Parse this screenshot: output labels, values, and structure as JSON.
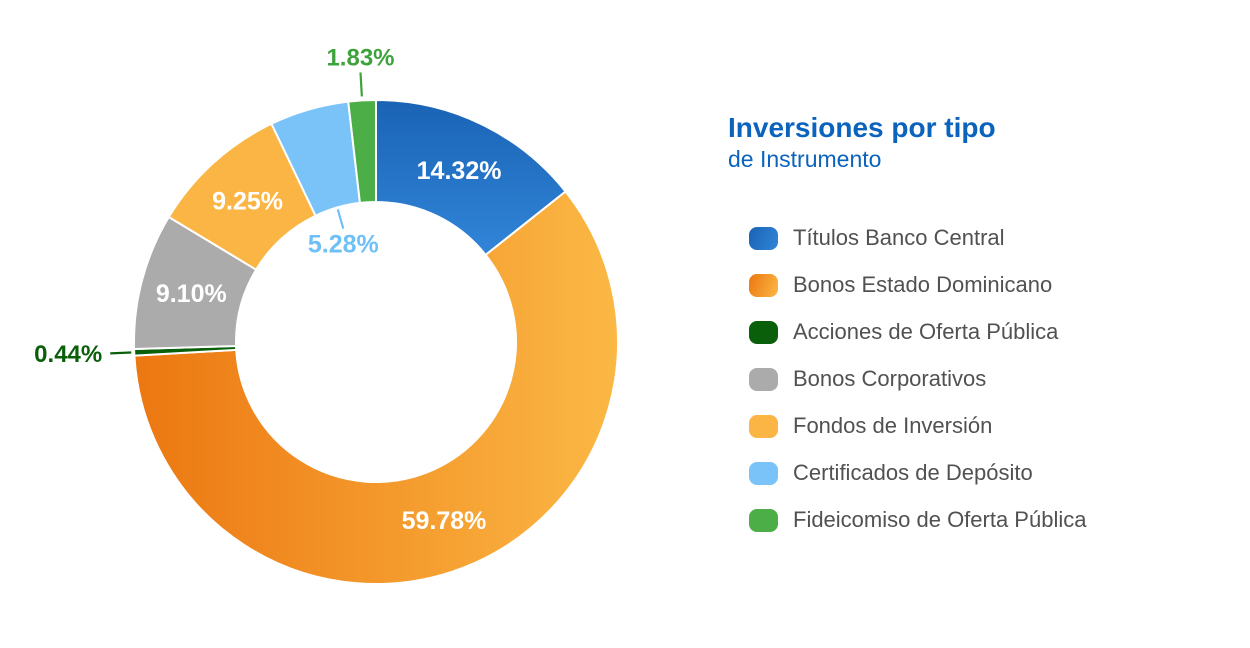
{
  "title": {
    "line1": "Inversiones por tipo",
    "line2": "de Instrumento",
    "color": "#0B63BD"
  },
  "legend_text_color": "#515151",
  "chart_data": {
    "type": "pie",
    "subtype": "donut",
    "title": "Inversiones por tipo de Instrumento",
    "unit": "percent",
    "total": 100,
    "start_angle_deg": 0,
    "direction": "clockwise",
    "legend_position": "right",
    "segments": [
      {
        "label": "Títulos Banco Central",
        "value": 14.32,
        "display": "14.32%",
        "color": "#1A63B5",
        "color2": "#3185D8",
        "label_placement": "inside",
        "label_color": "#FFFFFF"
      },
      {
        "label": "Bonos Estado Dominicano",
        "value": 59.78,
        "display": "59.78%",
        "color": "#EC7711",
        "color2": "#FBB845",
        "label_placement": "inside",
        "label_color": "#FFFFFF"
      },
      {
        "label": "Acciones de Oferta Pública",
        "value": 0.44,
        "display": "0.44%",
        "color": "#0A5F0A",
        "label_placement": "outside-left",
        "label_color": "#0A5F0A"
      },
      {
        "label": "Bonos Corporativos",
        "value": 9.1,
        "display": "9.10%",
        "color": "#ABABAB",
        "label_placement": "inside",
        "label_color": "#FFFFFF"
      },
      {
        "label": "Fondos de Inversión",
        "value": 9.25,
        "display": "9.25%",
        "color": "#FBB544",
        "label_placement": "inside",
        "label_color": "#FFFFFF"
      },
      {
        "label": "Certificados de Depósito",
        "value": 5.28,
        "display": "5.28%",
        "color": "#7AC3F8",
        "label_placement": "inside-hole",
        "label_color": "#6FC0F6"
      },
      {
        "label": "Fideicomiso de Oferta Pública",
        "value": 1.83,
        "display": "1.83%",
        "color": "#4BAE46",
        "label_placement": "outside-top",
        "label_color": "#3FA33C"
      }
    ]
  }
}
